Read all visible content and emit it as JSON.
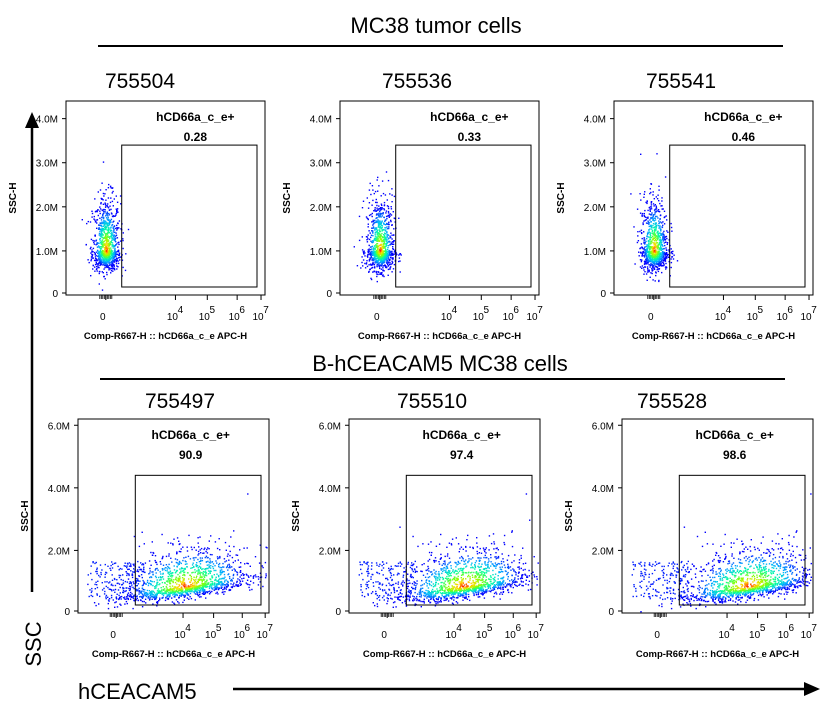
{
  "groups": [
    {
      "title": "MC38 tumor cells"
    },
    {
      "title": "B-hCEACAM5 MC38 cells"
    }
  ],
  "global_axes": {
    "y_label": "SSC",
    "x_label": "hCEACAM5"
  },
  "colors": {
    "low": "#0000ff",
    "mid": "#00ffff",
    "high": "#ff0000"
  },
  "chart_data": [
    {
      "type": "scatter",
      "group": "MC38 tumor cells",
      "title": "755504",
      "gate_name": "hCD66a_c_e+",
      "gate_value": "0.28",
      "xlabel": "Comp-R667-H :: hCD66a_c_e APC-H",
      "ylabel": "SSC-H",
      "yticks": [
        "0",
        "1.0M",
        "2.0M",
        "3.0M",
        "4.0M"
      ],
      "ylim": [
        0,
        4400000
      ],
      "xticks": [
        "0",
        "10",
        "10",
        "10",
        "10"
      ],
      "xtick_exps": [
        "",
        "4",
        "5",
        "6",
        "7"
      ],
      "x_scale": "biexponential",
      "gate": {
        "x_min": 1,
        "x_max": 10000000,
        "y_min": 0,
        "y_max": 3400000
      }
    },
    {
      "type": "scatter",
      "group": "MC38 tumor cells",
      "title": "755536",
      "gate_name": "hCD66a_c_e+",
      "gate_value": "0.33",
      "xlabel": "Comp-R667-H :: hCD66a_c_e APC-H",
      "ylabel": "SSC-H",
      "yticks": [
        "0",
        "1.0M",
        "2.0M",
        "3.0M",
        "4.0M"
      ],
      "ylim": [
        0,
        4400000
      ],
      "xticks": [
        "0",
        "10",
        "10",
        "10",
        "10"
      ],
      "xtick_exps": [
        "",
        "4",
        "5",
        "6",
        "7"
      ],
      "x_scale": "biexponential",
      "gate": {
        "x_min": 1,
        "x_max": 10000000,
        "y_min": 0,
        "y_max": 3400000
      }
    },
    {
      "type": "scatter",
      "group": "MC38 tumor cells",
      "title": "755541",
      "gate_name": "hCD66a_c_e+",
      "gate_value": "0.46",
      "xlabel": "Comp-R667-H :: hCD66a_c_e APC-H",
      "ylabel": "SSC-H",
      "yticks": [
        "0",
        "1.0M",
        "2.0M",
        "3.0M",
        "4.0M"
      ],
      "ylim": [
        0,
        4400000
      ],
      "xticks": [
        "0",
        "10",
        "10",
        "10",
        "10"
      ],
      "xtick_exps": [
        "",
        "4",
        "5",
        "6",
        "7"
      ],
      "x_scale": "biexponential",
      "gate": {
        "x_min": 1,
        "x_max": 10000000,
        "y_min": 0,
        "y_max": 3400000
      }
    },
    {
      "type": "scatter",
      "group": "B-hCEACAM5 MC38 cells",
      "title": "755497",
      "gate_name": "hCD66a_c_e+",
      "gate_value": "90.9",
      "xlabel": "Comp-R667-H :: hCD66a_c_e APC-H",
      "ylabel": "SSC-H",
      "yticks": [
        "0",
        "2.0M",
        "4.0M",
        "6.0M"
      ],
      "ylim": [
        0,
        6200000
      ],
      "xticks": [
        "0",
        "10",
        "10",
        "10",
        "10"
      ],
      "xtick_exps": [
        "",
        "4",
        "5",
        "6",
        "7"
      ],
      "x_scale": "biexponential",
      "gate": {
        "x_min": 1,
        "x_max": 10000000,
        "y_min": 0,
        "y_max": 4400000
      }
    },
    {
      "type": "scatter",
      "group": "B-hCEACAM5 MC38 cells",
      "title": "755510",
      "gate_name": "hCD66a_c_e+",
      "gate_value": "97.4",
      "xlabel": "Comp-R667-H :: hCD66a_c_e APC-H",
      "ylabel": "SSC-H",
      "yticks": [
        "0",
        "2.0M",
        "4.0M",
        "6.0M"
      ],
      "ylim": [
        0,
        6200000
      ],
      "xticks": [
        "0",
        "10",
        "10",
        "10",
        "10"
      ],
      "xtick_exps": [
        "",
        "4",
        "5",
        "6",
        "7"
      ],
      "x_scale": "biexponential",
      "gate": {
        "x_min": 1,
        "x_max": 10000000,
        "y_min": 0,
        "y_max": 4400000
      }
    },
    {
      "type": "scatter",
      "group": "B-hCEACAM5 MC38 cells",
      "title": "755528",
      "gate_name": "hCD66a_c_e+",
      "gate_value": "98.6",
      "xlabel": "Comp-R667-H :: hCD66a_c_e APC-H",
      "ylabel": "SSC-H",
      "yticks": [
        "0",
        "2.0M",
        "4.0M",
        "6.0M"
      ],
      "ylim": [
        0,
        6200000
      ],
      "xticks": [
        "0",
        "10",
        "10",
        "10",
        "10"
      ],
      "xtick_exps": [
        "",
        "4",
        "5",
        "6",
        "7"
      ],
      "x_scale": "biexponential",
      "gate": {
        "x_min": 1,
        "x_max": 10000000,
        "y_min": 0,
        "y_max": 4400000
      }
    }
  ]
}
